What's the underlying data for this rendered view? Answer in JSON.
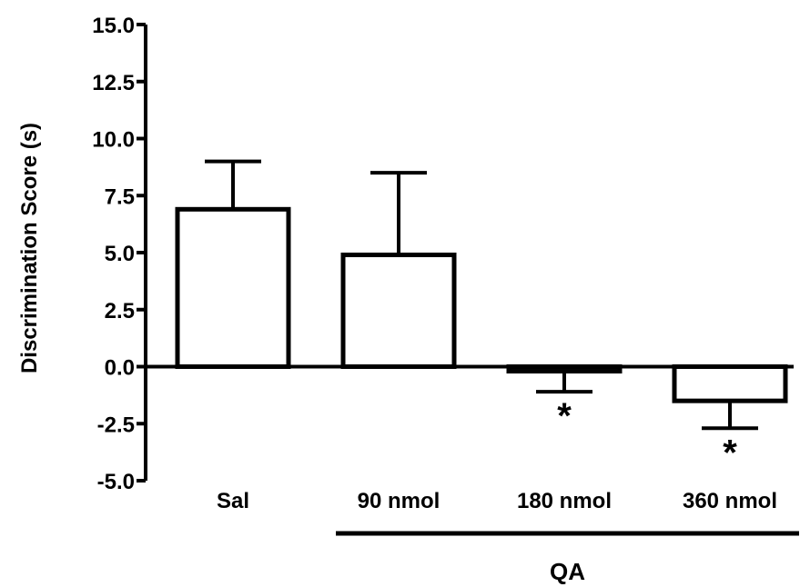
{
  "chart_data": {
    "type": "bar",
    "ylabel": "Discrimination Score (s)",
    "ylim": [
      -5.0,
      15.0
    ],
    "yticks": [
      "15.0",
      "12.5",
      "10.0",
      "7.5",
      "5.0",
      "2.5",
      "0.0",
      "-2.5",
      "-5.0"
    ],
    "ytick_values": [
      15.0,
      12.5,
      10.0,
      7.5,
      5.0,
      2.5,
      0.0,
      -2.5,
      -5.0
    ],
    "categories": [
      "Sal",
      "90 nmol",
      "180 nmol",
      "360 nmol"
    ],
    "values": [
      6.9,
      4.9,
      -0.2,
      -1.5
    ],
    "errors": [
      2.1,
      3.6,
      0.9,
      1.2
    ],
    "annotations": [
      "",
      "",
      "*",
      "*"
    ],
    "group_label": "QA",
    "group_members": [
      "90 nmol",
      "180 nmol",
      "360 nmol"
    ],
    "bar_fill": "#ffffff",
    "stroke_color": "#000000",
    "grid": false,
    "legend": "none"
  }
}
